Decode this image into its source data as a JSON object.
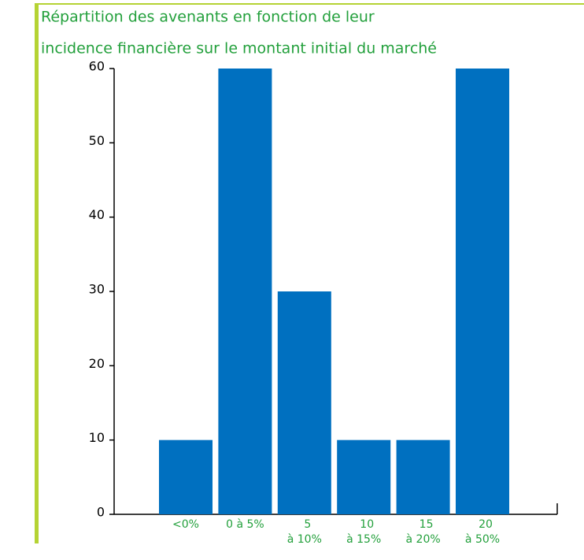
{
  "chart_data": {
    "type": "bar",
    "title": [
      "Répartition des avenants en fonction de leur",
      "incidence financière sur le montant initial du marché"
    ],
    "categories": [
      [
        "<0%"
      ],
      [
        "0 à 5%"
      ],
      [
        "5",
        "à 10%"
      ],
      [
        "10",
        "à 15%"
      ],
      [
        "15",
        "à 20%"
      ],
      [
        "20",
        "à 50%"
      ]
    ],
    "values": [
      10,
      60,
      30,
      10,
      10,
      60
    ],
    "color": "#0070c0",
    "ylim": [
      0,
      60
    ],
    "yticks": [
      0,
      10,
      20,
      30,
      40,
      50,
      60
    ],
    "grid": false
  }
}
